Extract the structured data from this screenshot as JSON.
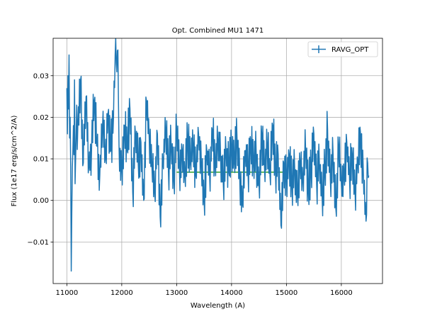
{
  "chart_data": {
    "type": "line",
    "title": "Opt. Combined MU1 1471",
    "xlabel": "Wavelength (A)",
    "ylabel": "Flux (1e17 erg/s/cm^2/A)",
    "xlim": [
      10750,
      16750
    ],
    "ylim": [
      -0.02,
      0.039
    ],
    "xticks": [
      11000,
      12000,
      13000,
      14000,
      15000,
      16000
    ],
    "yticks": [
      -0.01,
      0.0,
      0.01,
      0.02,
      0.03
    ],
    "xtick_labels": [
      "11000",
      "12000",
      "13000",
      "14000",
      "15000",
      "16000"
    ],
    "ytick_labels": [
      "−0.01",
      "0.00",
      "0.01",
      "0.02",
      "0.03"
    ],
    "grid": true,
    "legend": {
      "placement": "upper-right",
      "entries": [
        "RAVG_OPT"
      ]
    },
    "series": [
      {
        "name": "RAVG_OPT",
        "color": "#1f77b4",
        "x_start": 11000,
        "x_end": 16500,
        "x_step": 10,
        "anchors": [
          [
            11000,
            0.027
          ],
          [
            11010,
            0.016
          ],
          [
            11020,
            0.03
          ],
          [
            11030,
            0.022
          ],
          [
            11040,
            0.035
          ],
          [
            11050,
            0.015
          ],
          [
            11060,
            0.02
          ],
          [
            11070,
            0.008
          ],
          [
            11080,
            -0.017
          ],
          [
            11090,
            -0.003
          ],
          [
            11100,
            0.008
          ],
          [
            11110,
            0.012
          ],
          [
            11120,
            0.018
          ],
          [
            11130,
            0.011
          ],
          [
            11140,
            0.029
          ],
          [
            11150,
            0.004
          ],
          [
            11160,
            0.01
          ],
          [
            11170,
            0.016
          ],
          [
            11200,
            0.018
          ],
          [
            11250,
            0.029
          ],
          [
            11300,
            0.009
          ],
          [
            11350,
            0.025
          ],
          [
            11400,
            0.008
          ],
          [
            11450,
            0.012
          ],
          [
            11500,
            0.024
          ],
          [
            11550,
            0.013
          ],
          [
            11600,
            0.006
          ],
          [
            11650,
            0.018
          ],
          [
            11700,
            0.01
          ],
          [
            11750,
            0.021
          ],
          [
            11800,
            0.012
          ],
          [
            11850,
            0.02
          ],
          [
            11880,
            0.035
          ],
          [
            11900,
            0.033
          ],
          [
            11920,
            0.036
          ],
          [
            11940,
            0.024
          ],
          [
            11960,
            0.007
          ],
          [
            12000,
            0.008
          ],
          [
            12050,
            0.018
          ],
          [
            12100,
            0.012
          ],
          [
            12150,
            0.022
          ],
          [
            12200,
            0.002
          ],
          [
            12250,
            0.016
          ],
          [
            12300,
            0.009
          ],
          [
            12350,
            0.014
          ],
          [
            12400,
            0.0
          ],
          [
            12450,
            0.024
          ],
          [
            12500,
            0.015
          ],
          [
            12550,
            0.008
          ],
          [
            12600,
            0.002
          ],
          [
            12650,
            0.016
          ],
          [
            12700,
            -0.004
          ],
          [
            12750,
            0.009
          ],
          [
            12800,
            0.017
          ],
          [
            12850,
            0.007
          ],
          [
            12900,
            0.013
          ],
          [
            12950,
            0.005
          ],
          [
            13000,
            0.017
          ],
          [
            13050,
            0.008
          ],
          [
            13100,
            0.012
          ],
          [
            13150,
            0.006
          ],
          [
            13200,
            0.015
          ],
          [
            13250,
            0.009
          ],
          [
            13300,
            0.013
          ],
          [
            13350,
            0.006
          ],
          [
            13400,
            0.016
          ],
          [
            13450,
            0.009
          ],
          [
            13500,
            0.0
          ],
          [
            13550,
            0.012
          ],
          [
            13600,
            0.006
          ],
          [
            13650,
            0.017
          ],
          [
            13700,
            0.008
          ],
          [
            13750,
            0.014
          ],
          [
            13800,
            0.011
          ],
          [
            13850,
            0.004
          ],
          [
            13900,
            0.012
          ],
          [
            13950,
            0.007
          ],
          [
            14000,
            0.013
          ],
          [
            14050,
            0.009
          ],
          [
            14100,
            0.015
          ],
          [
            14150,
            0.005
          ],
          [
            14200,
            -0.001
          ],
          [
            14250,
            0.012
          ],
          [
            14300,
            0.007
          ],
          [
            14350,
            0.014
          ],
          [
            14400,
            0.009
          ],
          [
            14450,
            0.011
          ],
          [
            14500,
            0.004
          ],
          [
            14550,
            0.016
          ],
          [
            14600,
            0.008
          ],
          [
            14650,
            0.013
          ],
          [
            14700,
            0.006
          ],
          [
            14750,
            0.018
          ],
          [
            14800,
            0.007
          ],
          [
            14850,
            0.011
          ],
          [
            14900,
            -0.006
          ],
          [
            14950,
            0.009
          ],
          [
            15000,
            0.006
          ],
          [
            15050,
            0.011
          ],
          [
            15100,
            0.004
          ],
          [
            15150,
            0.008
          ],
          [
            15200,
            0.001
          ],
          [
            15250,
            0.009
          ],
          [
            15300,
            0.005
          ],
          [
            15350,
            0.012
          ],
          [
            15400,
            0.002
          ],
          [
            15450,
            0.007
          ],
          [
            15500,
            0.016
          ],
          [
            15550,
            0.004
          ],
          [
            15600,
            0.009
          ],
          [
            15650,
            0.001
          ],
          [
            15700,
            0.007
          ],
          [
            15750,
            0.017
          ],
          [
            15800,
            0.005
          ],
          [
            15850,
            0.011
          ],
          [
            15900,
            -0.002
          ],
          [
            15950,
            0.013
          ],
          [
            16000,
            0.004
          ],
          [
            16050,
            0.006
          ],
          [
            16100,
            0.014
          ],
          [
            16150,
            0.005
          ],
          [
            16200,
            0.011
          ],
          [
            16250,
            0.002
          ],
          [
            16300,
            0.009
          ],
          [
            16350,
            0.016
          ],
          [
            16400,
            0.007
          ],
          [
            16450,
            -0.005
          ],
          [
            16480,
            0.009
          ],
          [
            16500,
            0.006
          ]
        ]
      },
      {
        "name": "",
        "color": "#2ca02c",
        "x": [
          13000,
          15000
        ],
        "y": [
          0.0068,
          0.0068
        ]
      }
    ]
  }
}
